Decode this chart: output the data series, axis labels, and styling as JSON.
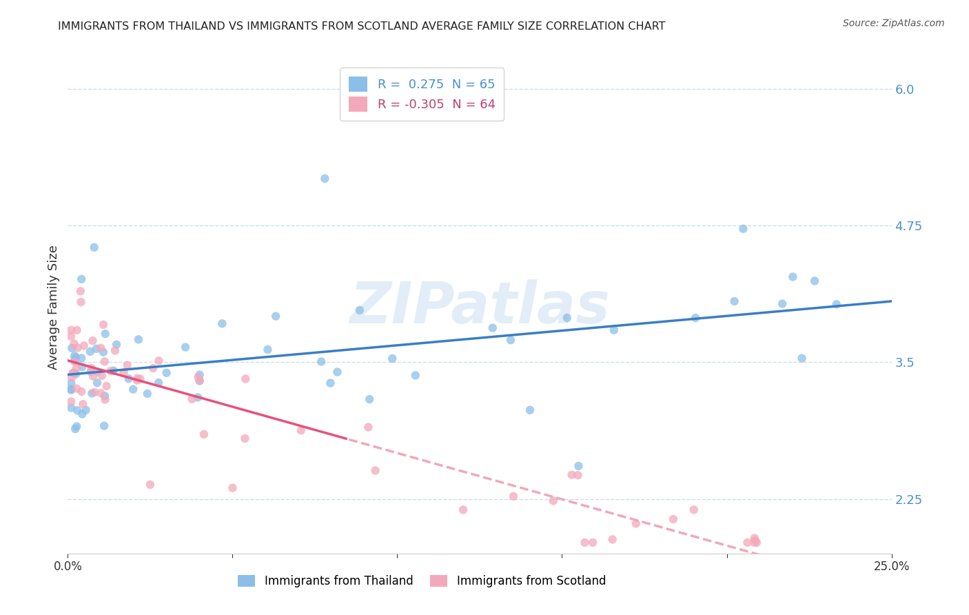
{
  "title": "IMMIGRANTS FROM THAILAND VS IMMIGRANTS FROM SCOTLAND AVERAGE FAMILY SIZE CORRELATION CHART",
  "source": "Source: ZipAtlas.com",
  "ylabel": "Average Family Size",
  "xlim": [
    0.0,
    0.25
  ],
  "ylim": [
    1.75,
    6.25
  ],
  "yticks": [
    2.25,
    3.5,
    4.75,
    6.0
  ],
  "xtick_vals": [
    0.0,
    0.05,
    0.1,
    0.15,
    0.2,
    0.25
  ],
  "xtick_labels": [
    "0.0%",
    "",
    "",
    "",
    "",
    "25.0%"
  ],
  "thailand_color": "#8bbfe8",
  "scotland_color": "#f4a8bb",
  "thailand_line_color": "#3a7ec4",
  "scotland_line_color": "#e8507a",
  "scotland_line_dash_color": "#f0a8bb",
  "R_thailand": 0.275,
  "N_thailand": 65,
  "R_scotland": -0.305,
  "N_scotland": 64,
  "watermark": "ZIPatlas",
  "background_color": "#ffffff",
  "grid_color": "#ccddee",
  "legend_label_thailand": "Immigrants from Thailand",
  "legend_label_scotland": "Immigrants from Scotland",
  "ytick_color": "#4a90d0",
  "title_color": "#222222",
  "source_color": "#555555"
}
